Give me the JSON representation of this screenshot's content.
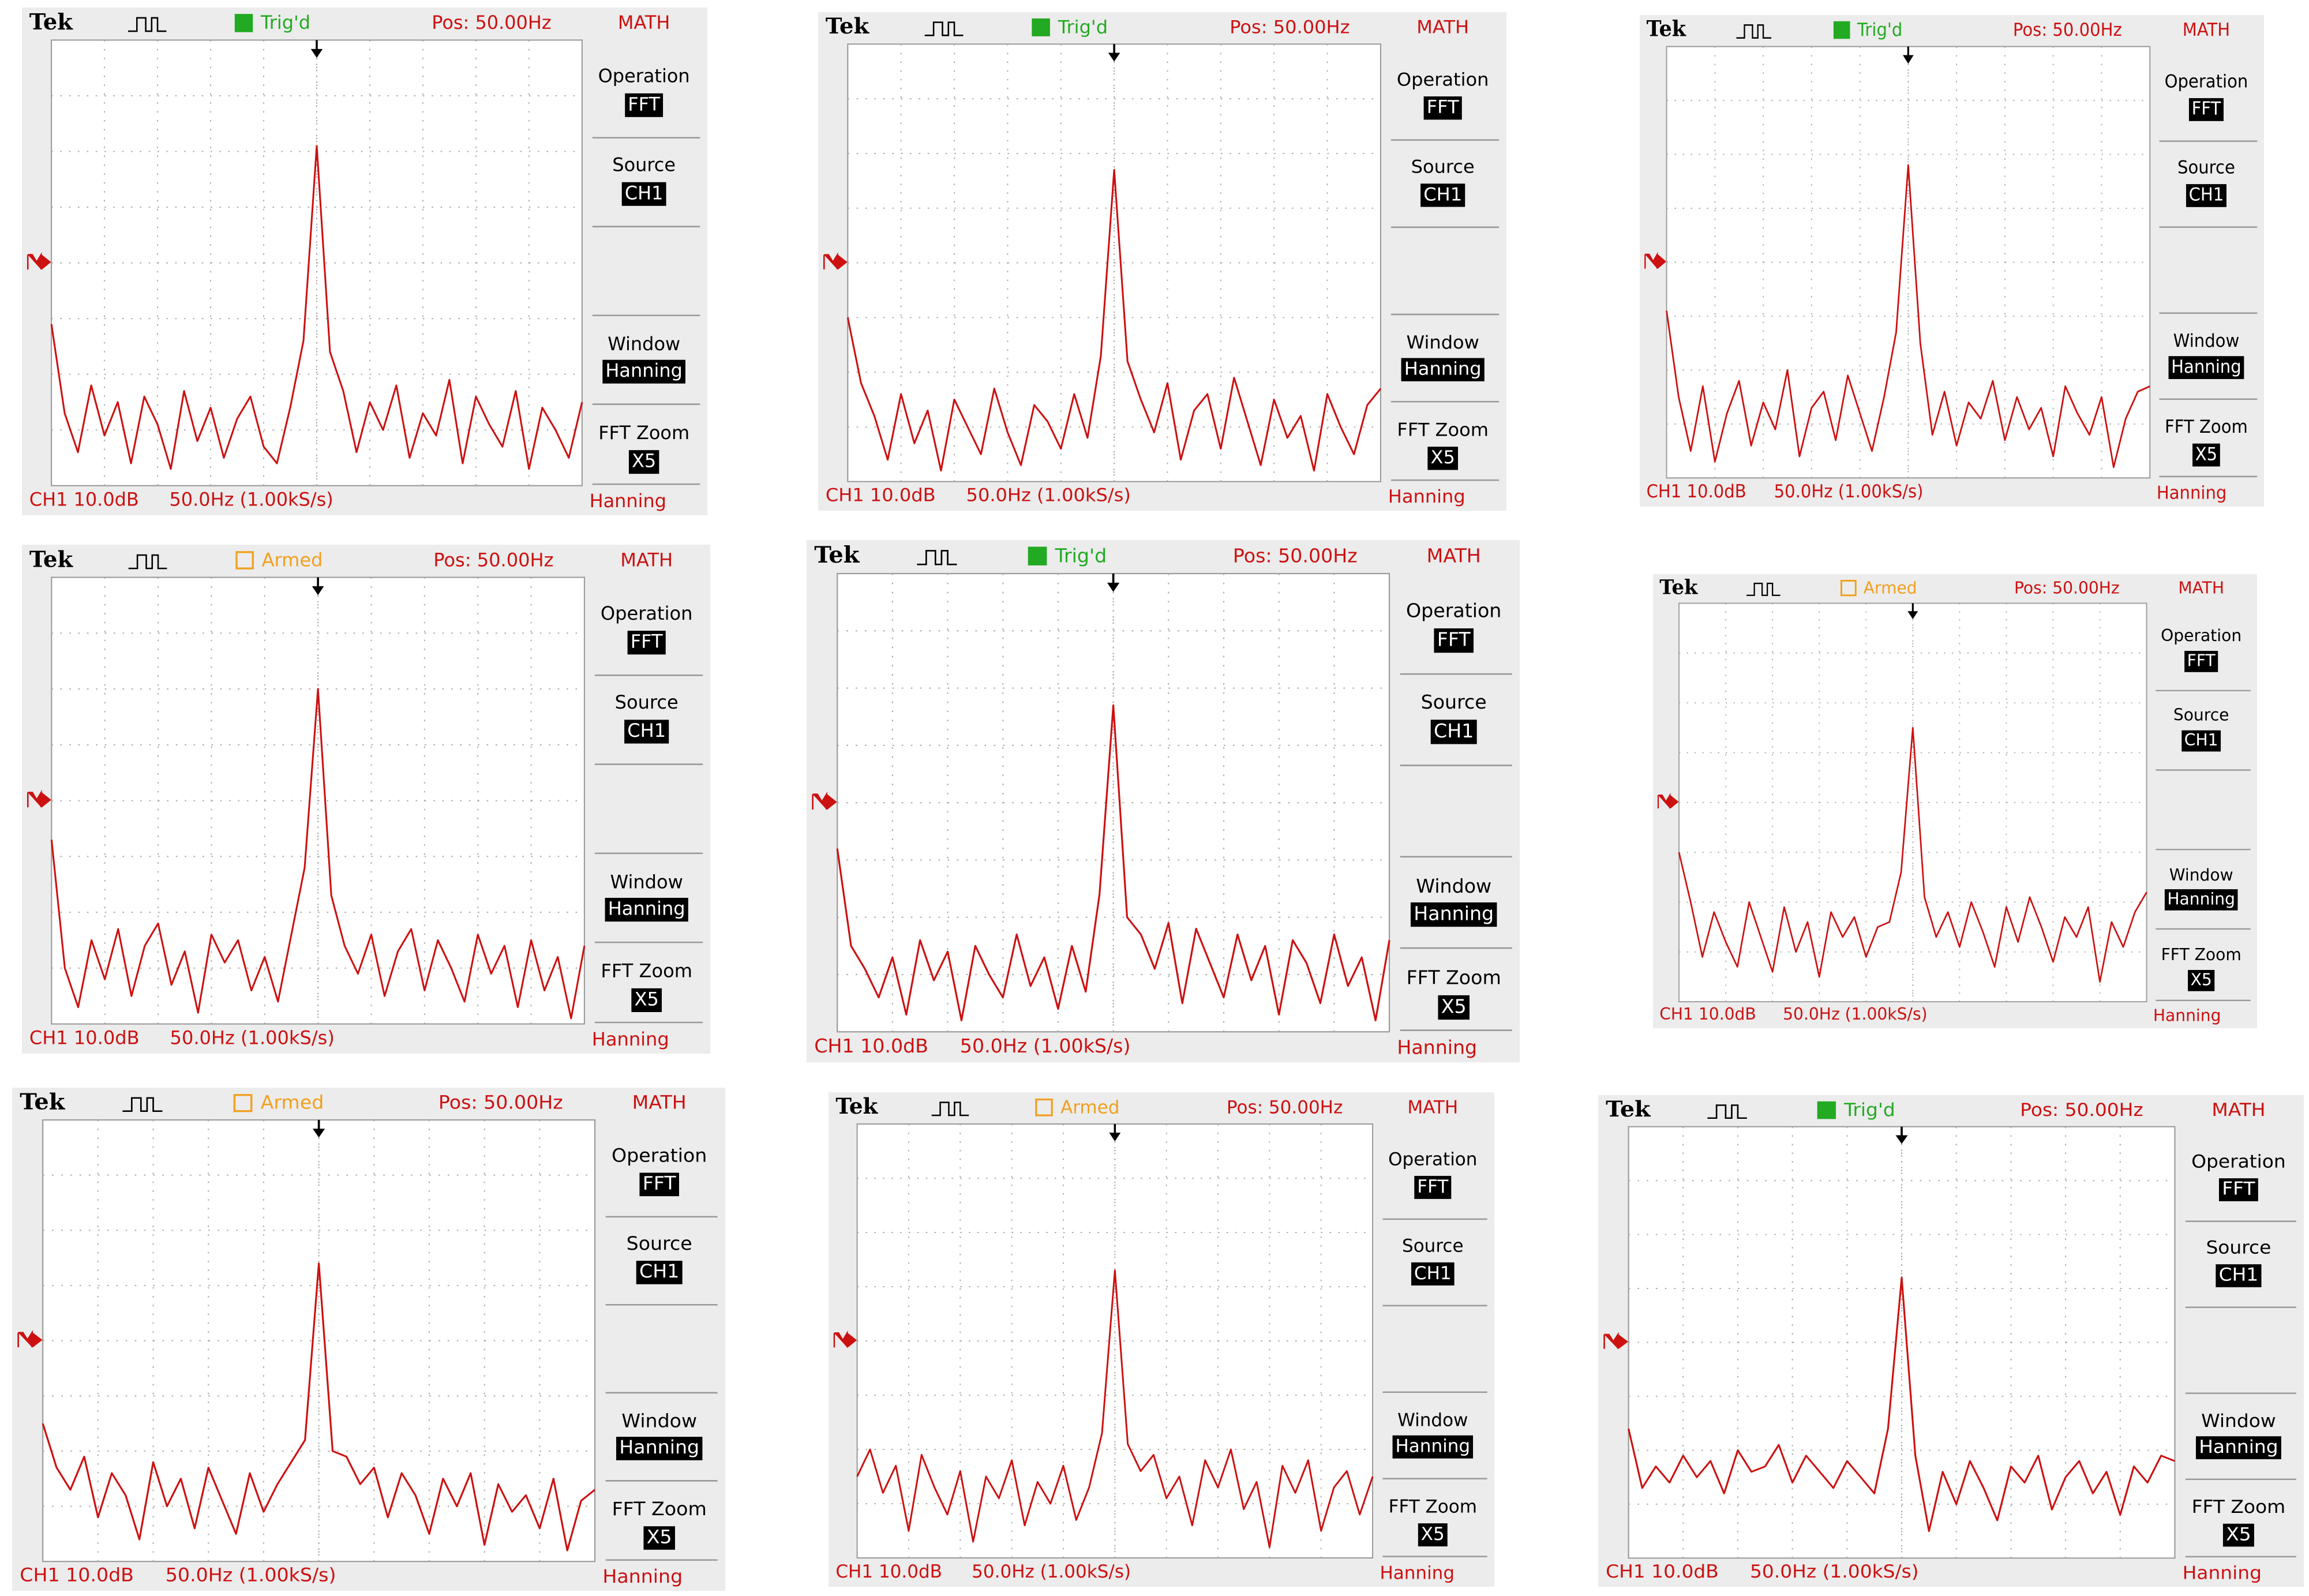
{
  "trace_ylim": [
    0,
    8
  ],
  "panels": [
    {
      "brand": "Tek",
      "status": "Trig'd",
      "status_color": "#22aa22",
      "position": "Pos: 50.00Hz",
      "mode": "MATH",
      "menu": [
        {
          "label": "Operation",
          "value": "FFT"
        },
        {
          "label": "Source",
          "value": "CH1"
        },
        {
          "label": "Window",
          "value": "Hanning"
        },
        {
          "label": "FFT Zoom",
          "value": "X5"
        }
      ],
      "scale": "CH1 10.0dB",
      "timebase": "50.0Hz (1.00kS/s)",
      "window": "Hanning",
      "trace": [
        2.9,
        1.3,
        0.6,
        1.8,
        0.9,
        1.5,
        0.4,
        1.6,
        1.1,
        0.3,
        1.7,
        0.8,
        1.4,
        0.5,
        1.2,
        1.6,
        0.7,
        0.4,
        1.4,
        2.6,
        6.1,
        2.4,
        1.7,
        0.6,
        1.5,
        1.0,
        1.8,
        0.5,
        1.3,
        0.9,
        1.9,
        0.4,
        1.6,
        1.1,
        0.7,
        1.7,
        0.3,
        1.4,
        1.0,
        0.5,
        1.5
      ]
    },
    {
      "brand": "Tek",
      "status": "Trig'd",
      "status_color": "#22aa22",
      "position": "Pos: 50.00Hz",
      "mode": "MATH",
      "menu": [
        {
          "label": "Operation",
          "value": "FFT"
        },
        {
          "label": "Source",
          "value": "CH1"
        },
        {
          "label": "Window",
          "value": "Hanning"
        },
        {
          "label": "FFT Zoom",
          "value": "X5"
        }
      ],
      "scale": "CH1 10.0dB",
      "timebase": "50.0Hz (1.00kS/s)",
      "window": "Hanning",
      "trace": [
        3.0,
        1.8,
        1.2,
        0.4,
        1.6,
        0.7,
        1.3,
        0.2,
        1.5,
        1.0,
        0.5,
        1.7,
        0.9,
        0.3,
        1.4,
        1.1,
        0.6,
        1.6,
        0.8,
        2.3,
        5.7,
        2.2,
        1.5,
        0.9,
        1.8,
        0.4,
        1.3,
        1.6,
        0.6,
        1.9,
        1.1,
        0.3,
        1.5,
        0.8,
        1.2,
        0.2,
        1.6,
        1.0,
        0.5,
        1.4,
        1.7
      ]
    },
    {
      "brand": "Tek",
      "status": "Trig'd",
      "status_color": "#22aa22",
      "position": "Pos: 50.00Hz",
      "mode": "MATH",
      "menu": [
        {
          "label": "Operation",
          "value": "FFT"
        },
        {
          "label": "Source",
          "value": "CH1"
        },
        {
          "label": "Window",
          "value": "Hanning"
        },
        {
          "label": "FFT Zoom",
          "value": "X5"
        }
      ],
      "scale": "CH1 10.0dB",
      "timebase": "50.0Hz (1.00kS/s)",
      "window": "Hanning",
      "trace": [
        3.1,
        1.5,
        0.5,
        1.7,
        0.3,
        1.2,
        1.8,
        0.6,
        1.4,
        0.9,
        2.0,
        0.4,
        1.3,
        1.6,
        0.7,
        1.9,
        1.2,
        0.5,
        1.5,
        2.7,
        5.8,
        2.5,
        0.8,
        1.6,
        0.6,
        1.4,
        1.1,
        1.8,
        0.7,
        1.5,
        0.9,
        1.3,
        0.4,
        1.7,
        1.2,
        0.8,
        1.5,
        0.2,
        1.1,
        1.6,
        1.7
      ]
    },
    {
      "brand": "Tek",
      "status": "Armed",
      "status_color": "#f0a020",
      "position": "Pos: 50.00Hz",
      "mode": "MATH",
      "menu": [
        {
          "label": "Operation",
          "value": "FFT"
        },
        {
          "label": "Source",
          "value": "CH1"
        },
        {
          "label": "Window",
          "value": "Hanning"
        },
        {
          "label": "FFT Zoom",
          "value": "X5"
        }
      ],
      "scale": "CH1 10.0dB",
      "timebase": "50.0Hz (1.00kS/s)",
      "window": "Hanning",
      "trace": [
        3.3,
        1.0,
        0.3,
        1.5,
        0.8,
        1.7,
        0.5,
        1.4,
        1.8,
        0.7,
        1.3,
        0.2,
        1.6,
        1.1,
        1.5,
        0.6,
        1.2,
        0.4,
        1.6,
        2.8,
        6.0,
        2.3,
        1.4,
        0.9,
        1.6,
        0.5,
        1.3,
        1.7,
        0.6,
        1.5,
        1.0,
        0.4,
        1.6,
        0.9,
        1.4,
        0.3,
        1.5,
        0.6,
        1.2,
        0.1,
        1.4
      ]
    },
    {
      "brand": "Tek",
      "status": "Trig'd",
      "status_color": "#22aa22",
      "position": "Pos: 50.00Hz",
      "mode": "MATH",
      "menu": [
        {
          "label": "Operation",
          "value": "FFT"
        },
        {
          "label": "Source",
          "value": "CH1"
        },
        {
          "label": "Window",
          "value": "Hanning"
        },
        {
          "label": "FFT Zoom",
          "value": "X5"
        }
      ],
      "scale": "CH1 10.0dB",
      "timebase": "50.0Hz (1.00kS/s)",
      "window": "Hanning",
      "trace": [
        3.2,
        1.5,
        1.1,
        0.6,
        1.3,
        0.3,
        1.6,
        0.9,
        1.4,
        0.2,
        1.5,
        1.0,
        0.6,
        1.7,
        0.8,
        1.3,
        0.4,
        1.5,
        0.7,
        2.4,
        5.7,
        2.0,
        1.7,
        1.1,
        1.9,
        0.5,
        1.8,
        1.2,
        0.6,
        1.7,
        0.9,
        1.5,
        0.3,
        1.6,
        1.2,
        0.5,
        1.7,
        0.8,
        1.3,
        0.2,
        1.6
      ]
    },
    {
      "brand": "Tek",
      "status": "Armed",
      "status_color": "#f0a020",
      "position": "Pos: 50.00Hz",
      "mode": "MATH",
      "menu": [
        {
          "label": "Operation",
          "value": "FFT"
        },
        {
          "label": "Source",
          "value": "CH1"
        },
        {
          "label": "Window",
          "value": "Hanning"
        },
        {
          "label": "FFT Zoom",
          "value": "X5"
        }
      ],
      "scale": "CH1 10.0dB",
      "timebase": "50.0Hz (1.00kS/s)",
      "window": "Hanning",
      "trace": [
        3.0,
        2.0,
        0.9,
        1.8,
        1.2,
        0.7,
        2.0,
        1.3,
        0.6,
        1.9,
        1.0,
        1.6,
        0.5,
        1.8,
        1.3,
        1.7,
        0.9,
        1.5,
        1.6,
        2.6,
        5.5,
        2.1,
        1.3,
        1.8,
        1.1,
        2.0,
        1.4,
        0.7,
        1.9,
        1.2,
        2.1,
        1.5,
        0.8,
        1.7,
        1.3,
        1.9,
        0.4,
        1.6,
        1.1,
        1.8,
        2.2
      ]
    },
    {
      "brand": "Tek",
      "status": "Armed",
      "status_color": "#f0a020",
      "position": "Pos: 50.00Hz",
      "mode": "MATH",
      "menu": [
        {
          "label": "Operation",
          "value": "FFT"
        },
        {
          "label": "Source",
          "value": "CH1"
        },
        {
          "label": "Window",
          "value": "Hanning"
        },
        {
          "label": "FFT Zoom",
          "value": "X5"
        }
      ],
      "scale": "CH1 10.0dB",
      "timebase": "50.0Hz (1.00kS/s)",
      "window": "Hanning",
      "trace": [
        2.5,
        1.7,
        1.3,
        1.9,
        0.8,
        1.6,
        1.2,
        0.4,
        1.8,
        1.0,
        1.5,
        0.6,
        1.7,
        1.1,
        0.5,
        1.6,
        0.9,
        1.4,
        1.8,
        2.2,
        5.4,
        2.0,
        1.9,
        1.4,
        1.7,
        0.8,
        1.6,
        1.2,
        0.5,
        1.5,
        1.0,
        1.6,
        0.3,
        1.4,
        0.9,
        1.2,
        0.6,
        1.5,
        0.2,
        1.1,
        1.3
      ]
    },
    {
      "brand": "Tek",
      "status": "Armed",
      "status_color": "#f0a020",
      "position": "Pos: 50.00Hz",
      "mode": "MATH",
      "menu": [
        {
          "label": "Operation",
          "value": "FFT"
        },
        {
          "label": "Source",
          "value": "CH1"
        },
        {
          "label": "Window",
          "value": "Hanning"
        },
        {
          "label": "FFT Zoom",
          "value": "X5"
        }
      ],
      "scale": "CH1 10.0dB",
      "timebase": "50.0Hz (1.00kS/s)",
      "window": "Hanning",
      "trace": [
        1.5,
        2.0,
        1.2,
        1.7,
        0.5,
        1.9,
        1.3,
        0.8,
        1.6,
        0.3,
        1.5,
        1.1,
        1.8,
        0.6,
        1.4,
        1.0,
        1.7,
        0.7,
        1.3,
        2.3,
        5.3,
        2.1,
        1.6,
        1.9,
        1.1,
        1.5,
        0.6,
        1.8,
        1.3,
        2.0,
        0.9,
        1.4,
        0.2,
        1.7,
        1.2,
        1.8,
        0.5,
        1.3,
        1.6,
        0.8,
        1.5
      ]
    },
    {
      "brand": "Tek",
      "status": "Trig'd",
      "status_color": "#22aa22",
      "position": "Pos: 50.00Hz",
      "mode": "MATH",
      "menu": [
        {
          "label": "Operation",
          "value": "FFT"
        },
        {
          "label": "Source",
          "value": "CH1"
        },
        {
          "label": "Window",
          "value": "Hanning"
        },
        {
          "label": "FFT Zoom",
          "value": "X5"
        }
      ],
      "scale": "CH1 10.0dB",
      "timebase": "50.0Hz (1.00kS/s)",
      "window": "Hanning",
      "trace": [
        2.4,
        1.3,
        1.7,
        1.4,
        1.9,
        1.5,
        1.8,
        1.2,
        2.0,
        1.6,
        1.7,
        2.1,
        1.4,
        1.9,
        1.6,
        1.3,
        1.8,
        1.5,
        1.2,
        2.4,
        5.2,
        1.9,
        0.5,
        1.6,
        1.0,
        1.8,
        1.3,
        0.7,
        1.7,
        1.4,
        1.9,
        0.9,
        1.5,
        1.8,
        1.2,
        1.6,
        0.8,
        1.7,
        1.4,
        1.9,
        1.8
      ]
    }
  ]
}
